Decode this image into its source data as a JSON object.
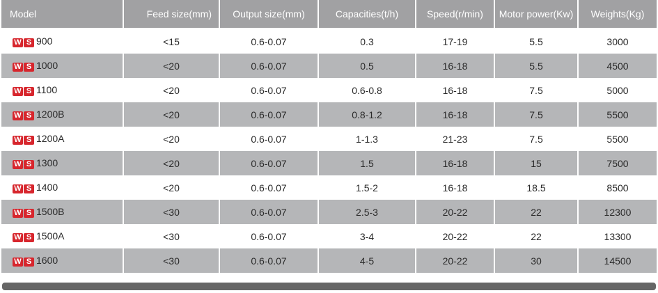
{
  "logo": [
    "W",
    "S"
  ],
  "table": {
    "header": [
      "Model",
      "Feed size(mm)",
      "Output size(mm)",
      "Capacities(t/h)",
      "Speed(r/min)",
      "Motor power(Kw)",
      "Weights(Kg)"
    ],
    "rows": [
      [
        "900",
        "<15",
        "0.6-0.07",
        "0.3",
        "17-19",
        "5.5",
        "3000"
      ],
      [
        "1000",
        "<20",
        "0.6-0.07",
        "0.5",
        "16-18",
        "5.5",
        "4500"
      ],
      [
        "1100",
        "<20",
        "0.6-0.07",
        "0.6-0.8",
        "16-18",
        "7.5",
        "5000"
      ],
      [
        "1200B",
        "<20",
        "0.6-0.07",
        "0.8-1.2",
        "16-18",
        "7.5",
        "5500"
      ],
      [
        "1200A",
        "<20",
        "0.6-0.07",
        "1-1.3",
        "21-23",
        "7.5",
        "5500"
      ],
      [
        "1300",
        "<20",
        "0.6-0.07",
        "1.5",
        "16-18",
        "15",
        "7500"
      ],
      [
        "1400",
        "<20",
        "0.6-0.07",
        "1.5-2",
        "16-18",
        "18.5",
        "8500"
      ],
      [
        "1500B",
        "<30",
        "0.6-0.07",
        "2.5-3",
        "20-22",
        "22",
        "12300"
      ],
      [
        "1500A",
        "<30",
        "0.6-0.07",
        "3-4",
        "20-22",
        "22",
        "13300"
      ],
      [
        "1600",
        "<30",
        "0.6-0.07",
        "4-5",
        "20-22",
        "30",
        "14500"
      ]
    ]
  }
}
